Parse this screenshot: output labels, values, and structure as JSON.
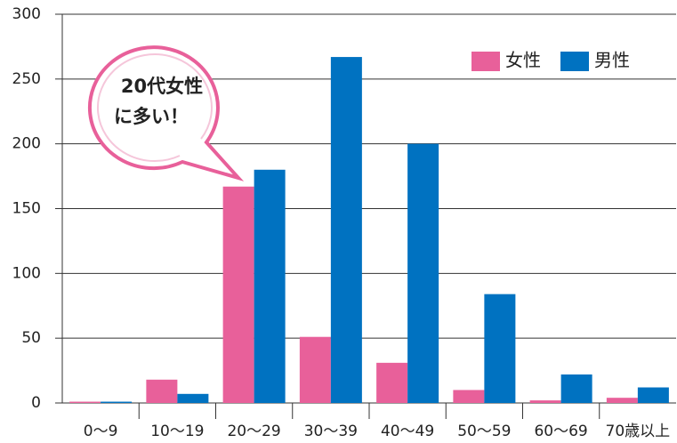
{
  "chart_data": {
    "type": "bar",
    "categories": [
      "0～9",
      "10～19",
      "20～29",
      "30～39",
      "40～49",
      "50～59",
      "60～69",
      "70歳以上"
    ],
    "series": [
      {
        "name": "女性",
        "color": "#e8609a",
        "values": [
          1,
          18,
          167,
          51,
          31,
          10,
          2,
          4
        ]
      },
      {
        "name": "男性",
        "color": "#0072c1",
        "values": [
          1,
          7,
          180,
          267,
          200,
          84,
          22,
          12
        ]
      }
    ],
    "ylim": [
      0,
      300
    ],
    "yticks": [
      0,
      50,
      100,
      150,
      200,
      250,
      300
    ],
    "grid": true,
    "legend": "upper right",
    "annotation": [
      "20代女性",
      "に多い！"
    ]
  }
}
